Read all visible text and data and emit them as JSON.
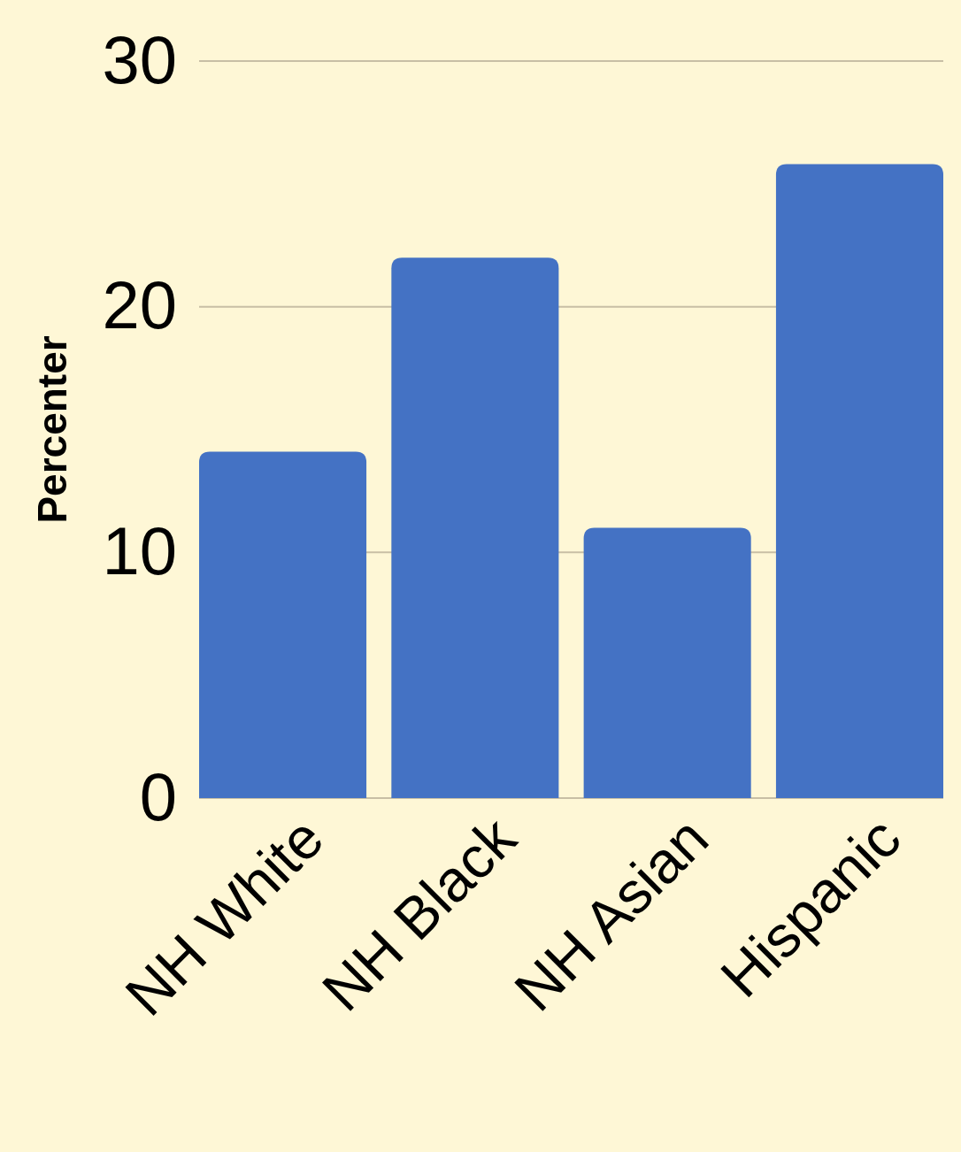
{
  "chart_data": {
    "type": "bar",
    "ylabel": "Percenter",
    "categories": [
      "NH White",
      "NH Black",
      "NH Asian",
      "Hispanic"
    ],
    "values": [
      14.1,
      22.0,
      11.0,
      25.8
    ],
    "color": "#4472c4",
    "ylim": [
      0,
      30
    ],
    "yticks": [
      0,
      10,
      20,
      30
    ],
    "grid": "y"
  }
}
